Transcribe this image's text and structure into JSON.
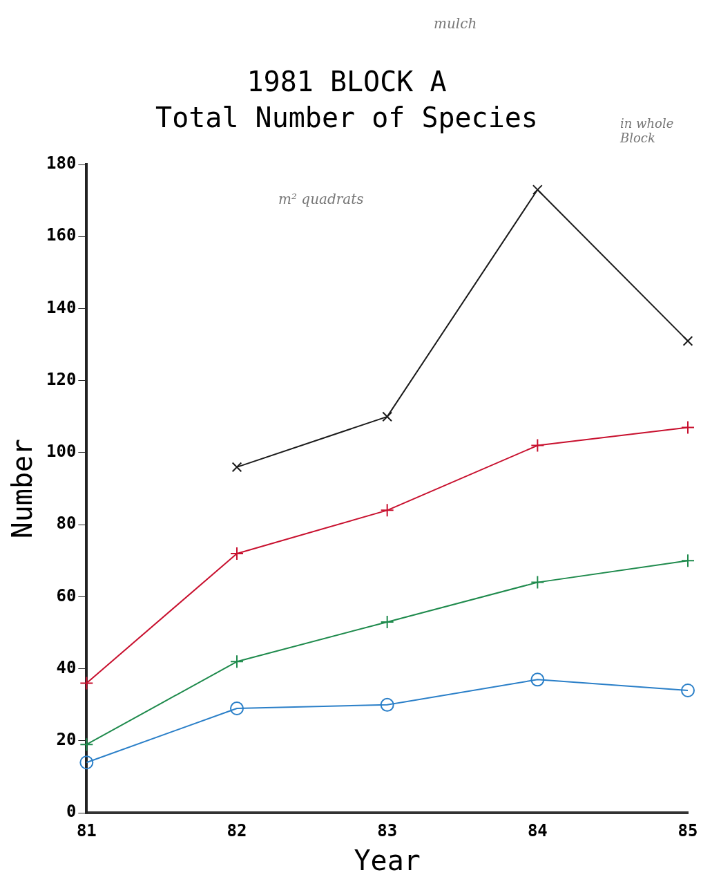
{
  "chart_data": {
    "type": "line",
    "title": "1981 BLOCK A",
    "subtitle": "Total Number of Species",
    "xlabel": "Year",
    "ylabel": "Number",
    "x": [
      81,
      82,
      83,
      84,
      85
    ],
    "xlim": [
      81,
      85
    ],
    "xticks": [
      81,
      82,
      83,
      84,
      85
    ],
    "ylim": [
      0,
      180
    ],
    "yticks": [
      0,
      20,
      40,
      60,
      80,
      100,
      120,
      140,
      160,
      180
    ],
    "grid": false,
    "legend": false,
    "annotations": [
      "mulch",
      "m² quadrats",
      "in whole Block"
    ],
    "series": [
      {
        "color": "#1a1a1a",
        "marker": "x",
        "x": [
          82,
          83,
          84,
          85
        ],
        "values": [
          96,
          110,
          173,
          131
        ]
      },
      {
        "color": "#c8102e",
        "marker": "cross",
        "values": [
          36,
          72,
          84,
          102,
          107
        ]
      },
      {
        "color": "#1e8a4c",
        "marker": "cross",
        "values": [
          19,
          42,
          53,
          64,
          70
        ]
      },
      {
        "color": "#2a7fc8",
        "marker": "circle",
        "values": [
          14,
          29,
          30,
          37,
          34
        ]
      }
    ]
  }
}
